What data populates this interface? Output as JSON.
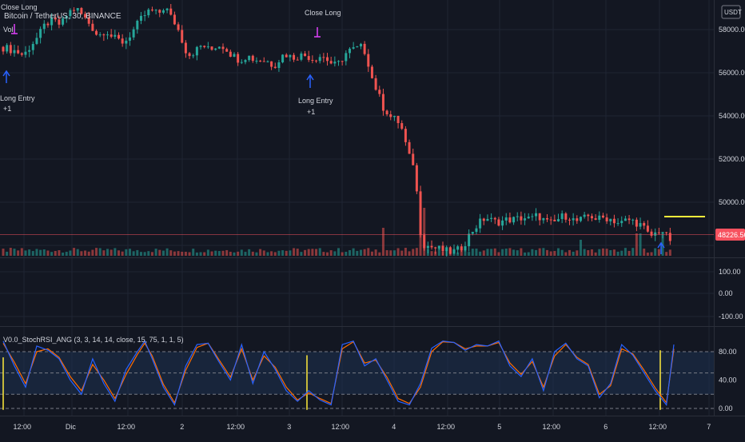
{
  "symbol": {
    "title": "Bitcoin / TetherUS, 30, BINANCE",
    "currency": "USDT",
    "indicator_label": "Vol"
  },
  "price_axis": {
    "ticks": [
      "58000.00",
      "56000.00",
      "54000.00",
      "52000.00",
      "50000.00"
    ],
    "last_price": "48226.56"
  },
  "osc_axis": {
    "ticks": [
      "100.00",
      "0.00",
      "-100.00"
    ]
  },
  "stoch_axis": {
    "ticks": [
      "80.00",
      "40.00",
      "0.00"
    ]
  },
  "stoch": {
    "title": "V0.0_StochRSI_ANG (3, 3, 14, 14, close, 15, 75, 1, 1, 5)"
  },
  "time_axis": {
    "ticks": [
      "12:00",
      "Dic",
      "12:00",
      "2",
      "12:00",
      "3",
      "12:00",
      "4",
      "12:00",
      "5",
      "12:00",
      "6",
      "12:00",
      "7"
    ]
  },
  "annotations": [
    {
      "type": "close",
      "label": "Close Long",
      "sub": ""
    },
    {
      "type": "entry",
      "label": "Long Entry",
      "sub": "+1"
    },
    {
      "type": "close",
      "label": "Close Long",
      "sub": ""
    },
    {
      "type": "entry",
      "label": "Long Entry",
      "sub": "+1"
    },
    {
      "type": "entry-small",
      "label": "",
      "sub": ""
    }
  ],
  "colors": {
    "background": "#131722",
    "up": "#26a69a",
    "down": "#ef5350",
    "k_line": "#2962ff",
    "d_line": "#ff6d00",
    "band_fill": "#1e3150",
    "target_line": "#ffeb3b",
    "price_line": "#f7525f",
    "close_marker": "#e040fb",
    "entry_marker": "#2962ff"
  },
  "chart_data": {
    "type": "candlestick",
    "title": "Bitcoin / TetherUS, 30, BINANCE",
    "x_ticks": [
      "12:00",
      "Dic",
      "12:00",
      "2",
      "12:00",
      "3",
      "12:00",
      "4",
      "12:00",
      "5",
      "12:00",
      "6",
      "12:00",
      "7"
    ],
    "ylim": [
      47500,
      59200
    ],
    "last_price": 48226.56,
    "target_level": 49050,
    "price_path": [
      [
        0,
        57200
      ],
      [
        4,
        57000
      ],
      [
        6,
        56800
      ],
      [
        8,
        57300
      ],
      [
        10,
        57700
      ],
      [
        12,
        58300
      ],
      [
        14,
        58400
      ],
      [
        16,
        58200
      ],
      [
        18,
        58800
      ],
      [
        20,
        59000
      ],
      [
        22,
        58600
      ],
      [
        24,
        58200
      ],
      [
        26,
        57700
      ],
      [
        28,
        58000
      ],
      [
        30,
        57600
      ],
      [
        33,
        57400
      ],
      [
        36,
        58100
      ],
      [
        38,
        58600
      ],
      [
        40,
        58900
      ],
      [
        42,
        58700
      ],
      [
        44,
        59100
      ],
      [
        45,
        58700
      ],
      [
        47,
        58200
      ],
      [
        49,
        57300
      ],
      [
        50,
        56800
      ],
      [
        52,
        57000
      ],
      [
        54,
        57300
      ],
      [
        56,
        57000
      ],
      [
        58,
        57300
      ],
      [
        60,
        57200
      ],
      [
        62,
        56800
      ],
      [
        64,
        56600
      ],
      [
        66,
        56800
      ],
      [
        68,
        56600
      ],
      [
        70,
        56600
      ],
      [
        72,
        56500
      ],
      [
        73,
        56300
      ],
      [
        76,
        56900
      ],
      [
        78,
        56700
      ],
      [
        80,
        56800
      ],
      [
        82,
        56800
      ],
      [
        84,
        56600
      ],
      [
        85,
        56800
      ],
      [
        87,
        56700
      ],
      [
        88,
        56500
      ],
      [
        90,
        56300
      ],
      [
        92,
        56800
      ],
      [
        93,
        57000
      ],
      [
        95,
        57100
      ],
      [
        97,
        57200
      ],
      [
        98,
        56800
      ],
      [
        100,
        55400
      ],
      [
        101,
        55200
      ],
      [
        102,
        54500
      ],
      [
        104,
        54100
      ],
      [
        105,
        53800
      ],
      [
        106,
        53900
      ],
      [
        108,
        53200
      ],
      [
        109,
        52200
      ],
      [
        111,
        51700
      ],
      [
        112,
        49200
      ],
      [
        113,
        48100
      ],
      [
        114,
        48000
      ],
      [
        116,
        47900
      ],
      [
        118,
        47800
      ],
      [
        120,
        47700
      ],
      [
        122,
        47700
      ],
      [
        124,
        48000
      ],
      [
        126,
        48600
      ],
      [
        128,
        49000
      ],
      [
        130,
        49300
      ],
      [
        132,
        49100
      ],
      [
        134,
        49100
      ],
      [
        136,
        49200
      ],
      [
        138,
        49200
      ],
      [
        140,
        49300
      ],
      [
        142,
        49200
      ],
      [
        144,
        49400
      ],
      [
        146,
        49100
      ],
      [
        148,
        49000
      ],
      [
        150,
        49300
      ],
      [
        152,
        49400
      ],
      [
        154,
        49100
      ],
      [
        156,
        49200
      ],
      [
        158,
        49400
      ],
      [
        160,
        49200
      ],
      [
        162,
        49300
      ],
      [
        164,
        49200
      ],
      [
        166,
        49000
      ],
      [
        168,
        49200
      ],
      [
        170,
        49100
      ],
      [
        172,
        48900
      ],
      [
        174,
        48400
      ],
      [
        176,
        48600
      ],
      [
        177,
        48800
      ],
      [
        178,
        48500
      ],
      [
        179,
        48300
      ],
      [
        180,
        48226
      ]
    ],
    "stoch_ylim": [
      -5,
      105
    ],
    "stoch_levels": [
      80,
      50,
      20,
      0
    ],
    "stoch_k": [
      [
        0,
        95
      ],
      [
        3,
        60
      ],
      [
        6,
        30
      ],
      [
        9,
        88
      ],
      [
        12,
        82
      ],
      [
        15,
        70
      ],
      [
        18,
        40
      ],
      [
        21,
        20
      ],
      [
        24,
        70
      ],
      [
        27,
        35
      ],
      [
        30,
        10
      ],
      [
        33,
        55
      ],
      [
        36,
        80
      ],
      [
        38,
        95
      ],
      [
        40,
        70
      ],
      [
        43,
        30
      ],
      [
        46,
        5
      ],
      [
        49,
        60
      ],
      [
        52,
        90
      ],
      [
        55,
        92
      ],
      [
        58,
        65
      ],
      [
        61,
        40
      ],
      [
        64,
        90
      ],
      [
        67,
        35
      ],
      [
        70,
        80
      ],
      [
        73,
        55
      ],
      [
        76,
        25
      ],
      [
        79,
        10
      ],
      [
        82,
        25
      ],
      [
        85,
        12
      ],
      [
        88,
        5
      ],
      [
        91,
        90
      ],
      [
        94,
        95
      ],
      [
        97,
        60
      ],
      [
        100,
        70
      ],
      [
        103,
        40
      ],
      [
        106,
        10
      ],
      [
        109,
        5
      ],
      [
        112,
        35
      ],
      [
        115,
        85
      ],
      [
        118,
        95
      ],
      [
        121,
        93
      ],
      [
        124,
        82
      ],
      [
        127,
        90
      ],
      [
        130,
        88
      ],
      [
        133,
        95
      ],
      [
        136,
        60
      ],
      [
        139,
        45
      ],
      [
        142,
        70
      ],
      [
        145,
        25
      ],
      [
        148,
        80
      ],
      [
        151,
        92
      ],
      [
        154,
        70
      ],
      [
        157,
        60
      ],
      [
        160,
        15
      ],
      [
        163,
        35
      ],
      [
        166,
        90
      ],
      [
        169,
        75
      ],
      [
        172,
        50
      ],
      [
        175,
        25
      ],
      [
        178,
        5
      ],
      [
        180,
        90
      ]
    ],
    "stoch_d": [
      [
        0,
        92
      ],
      [
        3,
        65
      ],
      [
        6,
        35
      ],
      [
        9,
        80
      ],
      [
        12,
        84
      ],
      [
        15,
        72
      ],
      [
        18,
        45
      ],
      [
        21,
        25
      ],
      [
        24,
        62
      ],
      [
        27,
        40
      ],
      [
        30,
        14
      ],
      [
        33,
        48
      ],
      [
        36,
        76
      ],
      [
        38,
        92
      ],
      [
        40,
        74
      ],
      [
        43,
        34
      ],
      [
        46,
        8
      ],
      [
        49,
        54
      ],
      [
        52,
        86
      ],
      [
        55,
        92
      ],
      [
        58,
        68
      ],
      [
        61,
        44
      ],
      [
        64,
        84
      ],
      [
        67,
        40
      ],
      [
        70,
        74
      ],
      [
        73,
        58
      ],
      [
        76,
        30
      ],
      [
        79,
        12
      ],
      [
        82,
        22
      ],
      [
        85,
        14
      ],
      [
        88,
        7
      ],
      [
        91,
        84
      ],
      [
        94,
        94
      ],
      [
        97,
        64
      ],
      [
        100,
        68
      ],
      [
        103,
        44
      ],
      [
        106,
        14
      ],
      [
        109,
        7
      ],
      [
        112,
        30
      ],
      [
        115,
        80
      ],
      [
        118,
        94
      ],
      [
        121,
        93
      ],
      [
        124,
        84
      ],
      [
        127,
        88
      ],
      [
        130,
        88
      ],
      [
        133,
        93
      ],
      [
        136,
        64
      ],
      [
        139,
        48
      ],
      [
        142,
        66
      ],
      [
        145,
        30
      ],
      [
        148,
        74
      ],
      [
        151,
        90
      ],
      [
        154,
        72
      ],
      [
        157,
        62
      ],
      [
        160,
        20
      ],
      [
        163,
        32
      ],
      [
        166,
        84
      ],
      [
        169,
        77
      ],
      [
        172,
        54
      ],
      [
        175,
        29
      ],
      [
        178,
        8
      ],
      [
        180,
        84
      ]
    ]
  }
}
